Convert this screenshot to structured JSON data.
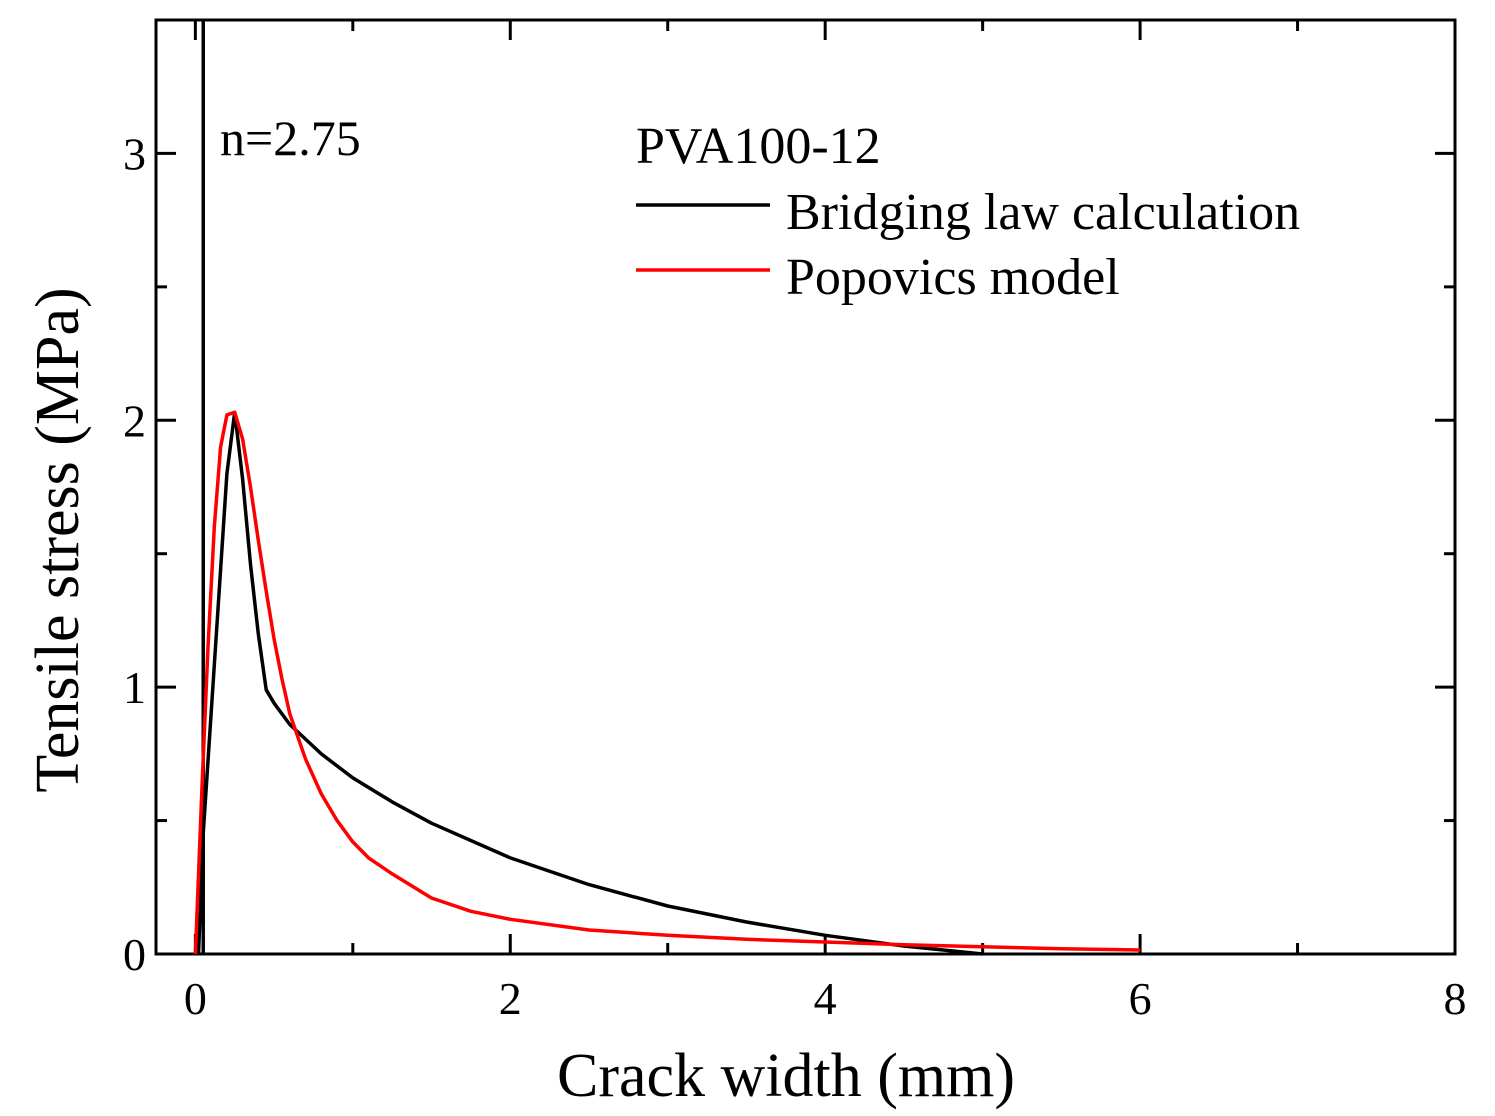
{
  "chart_data": {
    "type": "line",
    "title": "",
    "xlabel": "Crack width (mm)",
    "ylabel": "Tensile stress (MPa)",
    "xlim": [
      -0.25,
      8
    ],
    "ylim": [
      0,
      3.5
    ],
    "xticks": [
      0,
      2,
      4,
      6,
      8
    ],
    "xtick_labels": [
      "0",
      "2",
      "4",
      "6",
      "8"
    ],
    "xminor": [
      1,
      3,
      5,
      7
    ],
    "yticks": [
      0,
      1,
      2,
      3
    ],
    "ytick_labels": [
      "0",
      "1",
      "2",
      "3"
    ],
    "yminor": [
      0.5,
      1.5,
      2.5
    ],
    "annotation": "n=2.75",
    "legend_title": "PVA100-12",
    "legend_position": "top-right",
    "vertical_line": {
      "x": 0.05,
      "color": "#000000"
    },
    "series": [
      {
        "name": "Bridging law calculation",
        "color": "#000000",
        "x": [
          0.02,
          0.05,
          0.1,
          0.15,
          0.2,
          0.25,
          0.3,
          0.35,
          0.4,
          0.45,
          0.5,
          0.6,
          0.8,
          1.0,
          1.25,
          1.5,
          2.0,
          2.5,
          3.0,
          3.5,
          4.0,
          4.5,
          5.0
        ],
        "y": [
          0.0,
          0.45,
          0.9,
          1.35,
          1.8,
          2.03,
          1.78,
          1.46,
          1.2,
          0.99,
          0.94,
          0.86,
          0.75,
          0.66,
          0.57,
          0.49,
          0.36,
          0.26,
          0.18,
          0.12,
          0.07,
          0.03,
          0.0
        ]
      },
      {
        "name": "Popovics model",
        "color": "#ff0000",
        "x": [
          0.0,
          0.04,
          0.08,
          0.12,
          0.16,
          0.2,
          0.25,
          0.3,
          0.35,
          0.4,
          0.45,
          0.5,
          0.55,
          0.6,
          0.7,
          0.8,
          0.9,
          1.0,
          1.1,
          1.25,
          1.5,
          1.75,
          2.0,
          2.5,
          3.0,
          3.5,
          4.0,
          4.5,
          5.0,
          5.5,
          6.0
        ],
        "y": [
          0.0,
          0.6,
          1.15,
          1.6,
          1.9,
          2.02,
          2.03,
          1.93,
          1.75,
          1.55,
          1.36,
          1.18,
          1.03,
          0.9,
          0.73,
          0.6,
          0.5,
          0.42,
          0.36,
          0.3,
          0.21,
          0.16,
          0.13,
          0.09,
          0.07,
          0.055,
          0.045,
          0.035,
          0.027,
          0.02,
          0.015
        ]
      }
    ]
  }
}
